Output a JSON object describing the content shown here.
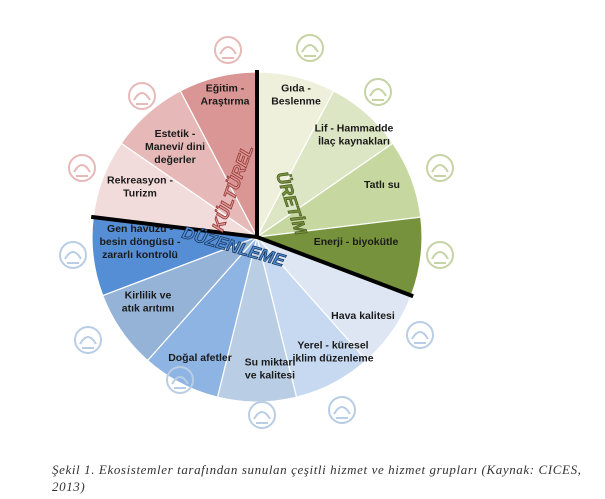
{
  "groups": [
    {
      "id": "uretim",
      "label": "ÜRETİM",
      "color": "#77923c",
      "stroke": "#4f6228"
    },
    {
      "id": "duzenleme",
      "label": "DÜZENLEME",
      "color": "#558ed5",
      "stroke": "#17375e"
    },
    {
      "id": "kulturel",
      "label": "KÜLTÜREL",
      "color": "#d99694",
      "stroke": "#953735"
    }
  ],
  "slices": [
    {
      "label": "Gıda - Beslenme",
      "lines": [
        "Gıda -",
        "Beslenme"
      ],
      "group": "uretim",
      "color": "#eef0dc",
      "icon": "rice-bowl-icon"
    },
    {
      "label": "Lif - Hammadde İlaç kaynakları",
      "lines": [
        "Lif - Hammadde",
        "İlaç kaynakları"
      ],
      "group": "uretim",
      "color": "#dde6c4",
      "icon": "molecule-hexagon-icon"
    },
    {
      "label": "Tatlı su",
      "lines": [
        "Tatlı su"
      ],
      "group": "uretim",
      "color": "#c7d7a0",
      "icon": "faucet-drop-icon"
    },
    {
      "label": "Enerji - biyokütle",
      "lines": [
        "Enerji - biyokütle"
      ],
      "group": "uretim",
      "color": "#77923c",
      "icon": "corn-bulb-icon"
    },
    {
      "label": "Hava kalitesi",
      "lines": [
        "Hava kalitesi"
      ],
      "group": "duzenleme",
      "color": "#dde6f2",
      "icon": "trees-icon"
    },
    {
      "label": "Yerel - küresel iklim düzenleme",
      "lines": [
        "Yerel - küresel",
        "iklim düzenleme"
      ],
      "group": "duzenleme",
      "color": "#c6d9f1",
      "icon": "sun-cloud-icon"
    },
    {
      "label": "Su miktarı ve kalitesi",
      "lines": [
        "Su miktarı",
        "ve kalitesi"
      ],
      "group": "duzenleme",
      "color": "#b9cde5",
      "icon": "water-cycle-icon"
    },
    {
      "label": "Doğal afetler",
      "lines": [
        "Doğal afetler"
      ],
      "group": "duzenleme",
      "color": "#8eb4e3",
      "icon": "storm-cloud-icon"
    },
    {
      "label": "Kirlilik ve atık arıtımı",
      "lines": [
        "Kirlilik ve",
        "atık arıtımı"
      ],
      "group": "duzenleme",
      "color": "#95b3d7",
      "icon": "waste-pipe-icon"
    },
    {
      "label": "Gen havuzu - besin döngüsü - zararlı kontrolü",
      "lines": [
        "Gen havuzu -",
        "besin döngüsü -",
        "zararlı kontrolü"
      ],
      "group": "duzenleme",
      "color": "#558ed5",
      "icon": "bird-icon"
    },
    {
      "label": "Rekreasyon - Turizm",
      "lines": [
        "Rekreasyon -",
        "Turizm"
      ],
      "group": "kulturel",
      "color": "#f2dcdb",
      "icon": "beach-umbrella-icon"
    },
    {
      "label": "Estetik - Manevi/ dini değerler",
      "lines": [
        "Estetik -",
        "Manevi/ dini",
        "değerler"
      ],
      "group": "kulturel",
      "color": "#e6b9b8",
      "icon": "sunset-landscape-icon"
    },
    {
      "label": "Eğitim - Araştırma",
      "lines": [
        "Eğitim -",
        "Araştırma"
      ],
      "group": "kulturel",
      "color": "#d99694",
      "icon": "magnifier-people-icon"
    }
  ],
  "caption": "Şekil 1. Ekosistemler tarafından sunulan çeşitli hizmet ve hizmet grupları (Kaynak: CICES, 2013)"
}
